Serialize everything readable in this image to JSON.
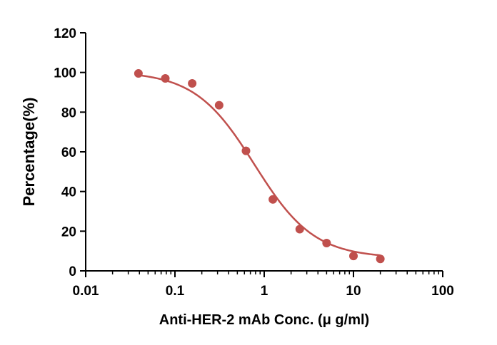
{
  "chart_data": {
    "type": "scatter",
    "xlabel": "Anti-HER-2 mAb Conc. (μ g/ml)",
    "ylabel": "Percentage(%)",
    "xscale": "log",
    "xlim": [
      0.01,
      100
    ],
    "ylim": [
      0,
      120
    ],
    "x_ticks": [
      0.01,
      0.1,
      1,
      10,
      100
    ],
    "x_tick_labels": [
      "0.01",
      "0.1",
      "1",
      "10",
      "100"
    ],
    "y_ticks": [
      0,
      20,
      40,
      60,
      80,
      100,
      120
    ],
    "y_tick_labels": [
      "0",
      "20",
      "40",
      "60",
      "80",
      "100",
      "120"
    ],
    "grid": false,
    "color": "#c0504d",
    "series": [
      {
        "x": [
          0.039,
          0.078,
          0.156,
          0.3125,
          0.625,
          1.25,
          2.5,
          5,
          10,
          20
        ],
        "y": [
          99.5,
          97,
          94.5,
          83.5,
          60.5,
          36,
          21,
          14,
          7.5,
          6
        ],
        "fit": "4PL"
      }
    ]
  }
}
